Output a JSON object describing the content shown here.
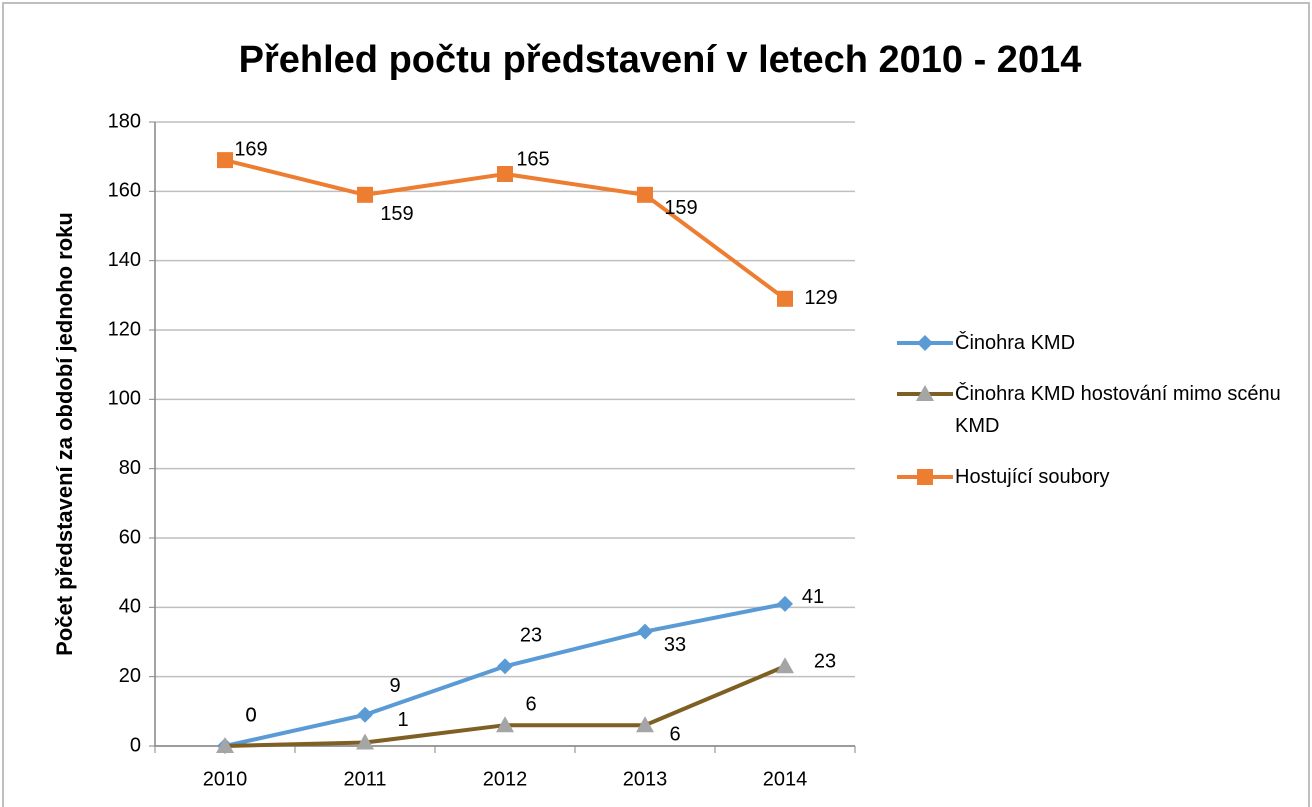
{
  "chart_data": {
    "type": "line",
    "title": "Přehled počtu představení v letech 2010 - 2014",
    "y_label": "Počet představení za období jednoho roku",
    "categories": [
      "2010",
      "2011",
      "2012",
      "2013",
      "2014"
    ],
    "series": [
      {
        "name": "Činohra KMD",
        "color": "#5b9bd5",
        "marker": "diamond",
        "values": [
          0,
          9,
          23,
          33,
          41
        ]
      },
      {
        "name": "Činohra KMD hostování mimo scénu KMD",
        "color": "#7f6024",
        "marker_color": "#a5a5a5",
        "marker": "triangle",
        "values": [
          0,
          1,
          6,
          6,
          23
        ]
      },
      {
        "name": "Hostující soubory",
        "color": "#ed7d31",
        "marker": "square",
        "values": [
          169,
          159,
          165,
          159,
          129
        ]
      }
    ],
    "ylim": [
      0,
      180
    ],
    "yticks": [
      0,
      20,
      40,
      60,
      80,
      100,
      120,
      140,
      160,
      180
    ],
    "grid": true,
    "legend": "right"
  }
}
